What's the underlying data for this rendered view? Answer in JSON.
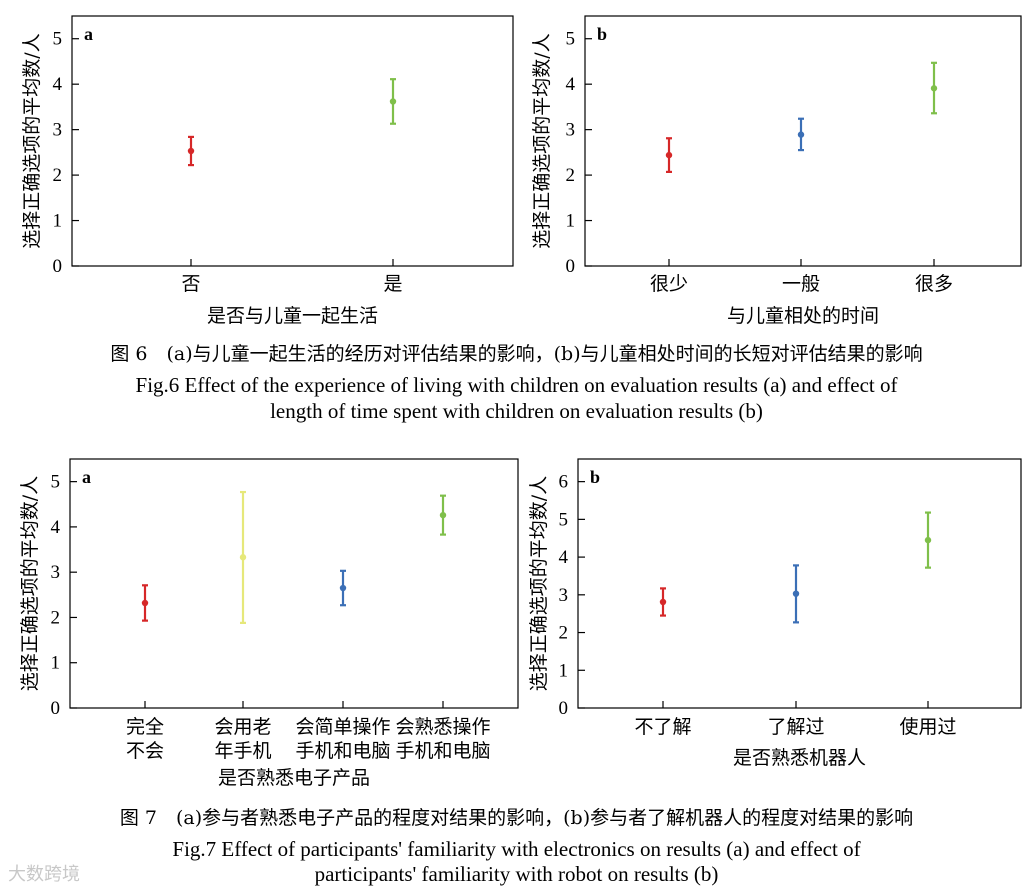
{
  "figures": [
    {
      "caption_cn": "图 6　(a)与儿童一起生活的经历对评估结果的影响，(b)与儿童相处时间的长短对评估结果的影响",
      "caption_en_1": "Fig.6 Effect of the experience of living with children on evaluation results (a) and effect of",
      "caption_en_2": "length of time spent with children on evaluation results (b)"
    },
    {
      "caption_cn": "图 7　(a)参与者熟悉电子产品的程度对结果的影响，(b)参与者了解机器人的程度对结果的影响",
      "caption_en_1": "Fig.7 Effect of participants' familiarity with electronics on results (a) and effect of",
      "caption_en_2": "participants' familiarity with robot on results (b)"
    }
  ],
  "watermark": "大数跨境",
  "chart_data": [
    {
      "type": "errorbar",
      "panel": "a",
      "ylabel": "选择正确选项的平均数/人",
      "xlabel": "是否与儿童一起生活",
      "ylim": [
        0,
        5.5
      ],
      "yticks": [
        0,
        1,
        2,
        3,
        4,
        5
      ],
      "categories": [
        [
          "否"
        ],
        [
          "是"
        ]
      ],
      "mean": [
        2.53,
        3.62
      ],
      "lower": [
        2.22,
        3.13
      ],
      "upper": [
        2.84,
        4.11
      ],
      "colors": [
        "#d62728",
        "#7fbf4a"
      ]
    },
    {
      "type": "errorbar",
      "panel": "b",
      "ylabel": "选择正确选项的平均数/人",
      "xlabel": "与儿童相处的时间",
      "ylim": [
        0,
        5.5
      ],
      "yticks": [
        0,
        1,
        2,
        3,
        4,
        5
      ],
      "categories": [
        [
          "很少"
        ],
        [
          "一般"
        ],
        [
          "很多"
        ]
      ],
      "mean": [
        2.44,
        2.89,
        3.91
      ],
      "lower": [
        2.07,
        2.55,
        3.36
      ],
      "upper": [
        2.81,
        3.24,
        4.47
      ],
      "colors": [
        "#d62728",
        "#3b6fb6",
        "#7fbf4a"
      ]
    },
    {
      "type": "errorbar",
      "panel": "a",
      "ylabel": "选择正确选项的平均数/人",
      "xlabel": "是否熟悉电子产品",
      "ylim": [
        0,
        5.5
      ],
      "yticks": [
        0,
        1,
        2,
        3,
        4,
        5
      ],
      "categories": [
        [
          "完全",
          "不会"
        ],
        [
          "会用老",
          "年手机"
        ],
        [
          "会简单操作",
          "手机和电脑"
        ],
        [
          "会熟悉操作",
          "手机和电脑"
        ]
      ],
      "mean": [
        2.32,
        3.33,
        2.65,
        4.26
      ],
      "lower": [
        1.93,
        1.88,
        2.27,
        3.83
      ],
      "upper": [
        2.71,
        4.77,
        3.03,
        4.69
      ],
      "colors": [
        "#d62728",
        "#e6e87a",
        "#3b6fb6",
        "#7fbf4a"
      ]
    },
    {
      "type": "errorbar",
      "panel": "b",
      "ylabel": "选择正确选项的平均数/人",
      "xlabel": "是否熟悉机器人",
      "ylim": [
        0,
        6.6
      ],
      "yticks": [
        0,
        1,
        2,
        3,
        4,
        5,
        6
      ],
      "categories": [
        [
          "不了解"
        ],
        [
          "了解过"
        ],
        [
          "使用过"
        ]
      ],
      "mean": [
        2.81,
        3.03,
        4.45
      ],
      "lower": [
        2.45,
        2.27,
        3.72
      ],
      "upper": [
        3.17,
        3.78,
        5.18
      ],
      "colors": [
        "#d62728",
        "#3b6fb6",
        "#7fbf4a"
      ]
    }
  ]
}
